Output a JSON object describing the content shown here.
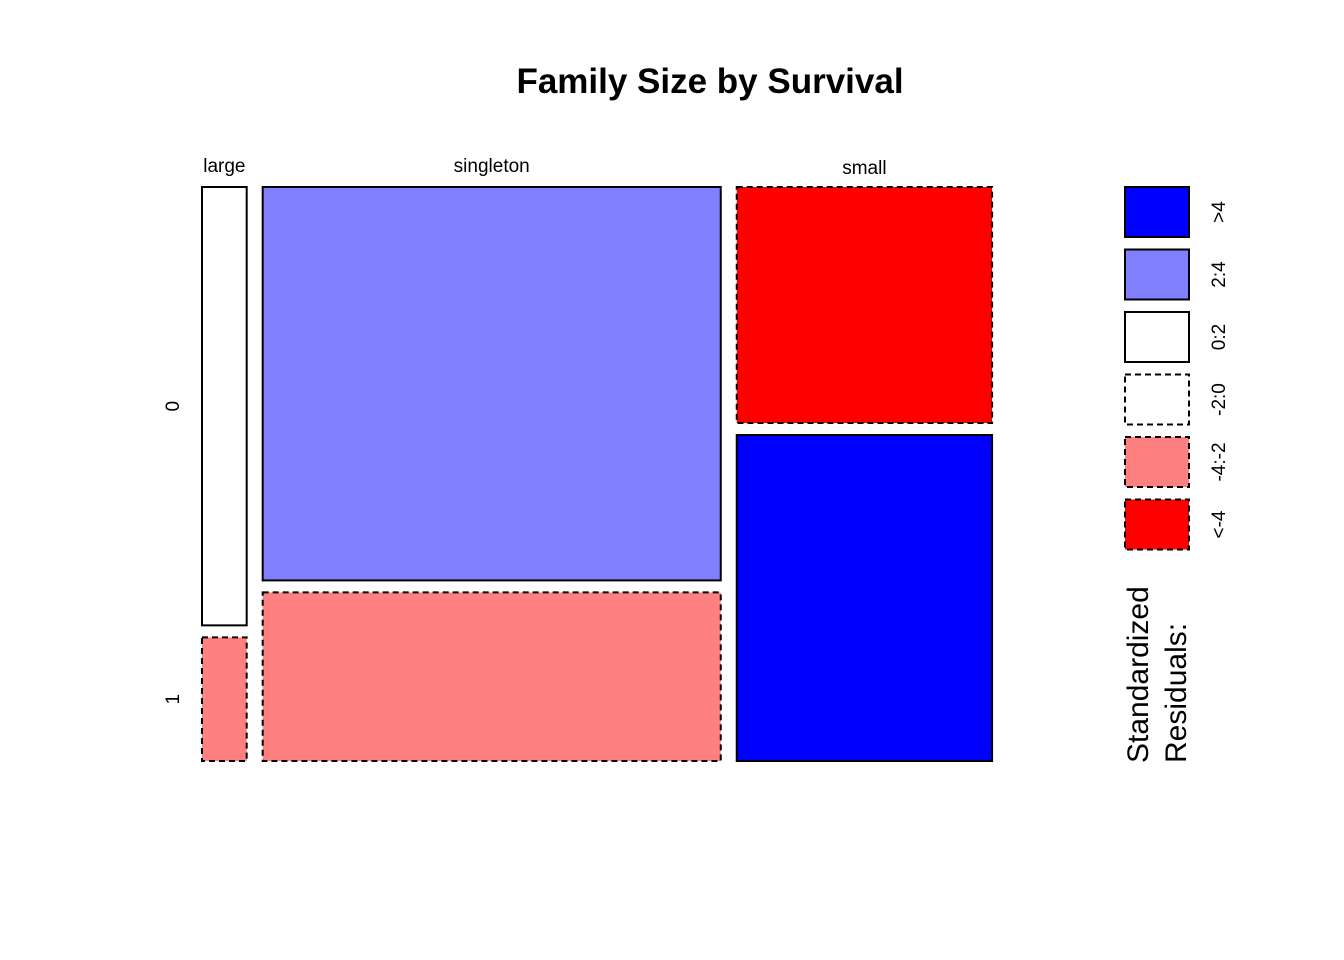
{
  "chart_data": {
    "type": "mosaic",
    "title": "Family Size by Survival",
    "column_variable_levels": [
      "large",
      "singleton",
      "small"
    ],
    "row_variable_levels": [
      "0",
      "1"
    ],
    "column_widths": [
      0.056,
      0.574,
      0.32
    ],
    "row_splits": [
      {
        "column": "large",
        "proportions": [
          0.78,
          0.22
        ]
      },
      {
        "column": "singleton",
        "proportions": [
          0.7,
          0.3
        ]
      },
      {
        "column": "small",
        "proportions": [
          0.42,
          0.58
        ]
      }
    ],
    "cells": [
      {
        "column": "large",
        "row": "0",
        "residual_class": "0:2"
      },
      {
        "column": "large",
        "row": "1",
        "residual_class": "-4:-2"
      },
      {
        "column": "singleton",
        "row": "0",
        "residual_class": "2:4"
      },
      {
        "column": "singleton",
        "row": "1",
        "residual_class": "-4:-2"
      },
      {
        "column": "small",
        "row": "0",
        "residual_class": "<-4"
      },
      {
        "column": "small",
        "row": "1",
        "residual_class": ">4"
      }
    ],
    "legend": {
      "title_lines": [
        "Standardized",
        "Residuals:"
      ],
      "placement": "right",
      "entries": [
        {
          "label": ">4",
          "fill": "#0000ff",
          "dashed": false
        },
        {
          "label": "2:4",
          "fill": "#8080ff",
          "dashed": false
        },
        {
          "label": "0:2",
          "fill": "#ffffff",
          "dashed": false
        },
        {
          "label": "-2:0",
          "fill": "#ffffff",
          "dashed": true
        },
        {
          "label": "-4:-2",
          "fill": "#ff8080",
          "dashed": true
        },
        {
          "label": "<-4",
          "fill": "#ff0000",
          "dashed": true
        }
      ]
    }
  }
}
